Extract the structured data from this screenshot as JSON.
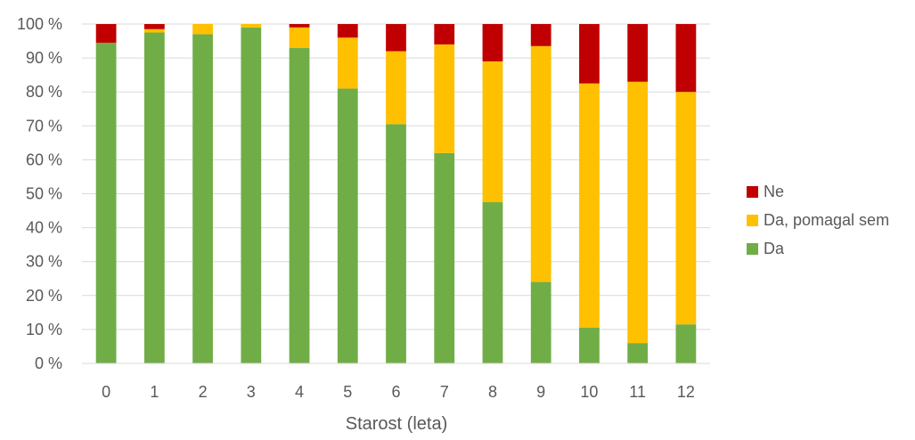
{
  "chart_data": {
    "type": "bar",
    "stacked": true,
    "percent_stacked": true,
    "title": "",
    "xlabel": "Starost (leta)",
    "ylabel": "",
    "categories": [
      "0",
      "1",
      "2",
      "3",
      "4",
      "5",
      "6",
      "7",
      "8",
      "9",
      "10",
      "11",
      "12"
    ],
    "ylim": [
      0,
      100
    ],
    "yticks": [
      "0 %",
      "10 %",
      "20 %",
      "30 %",
      "40 %",
      "50 %",
      "60 %",
      "70 %",
      "80 %",
      "90 %",
      "100 %"
    ],
    "grid": true,
    "legend_position": "right",
    "series": [
      {
        "name": "Da",
        "color": "#70ad47",
        "values": [
          94.5,
          97.5,
          97,
          99,
          93,
          81,
          70.5,
          62,
          47.5,
          24,
          10.5,
          6,
          11.5
        ]
      },
      {
        "name": "Da, pomagal sem",
        "color": "#ffc000",
        "values": [
          0,
          1,
          3,
          1,
          6,
          15,
          21.5,
          32,
          41.5,
          69.5,
          72,
          77,
          68.5
        ]
      },
      {
        "name": "Ne",
        "color": "#c00000",
        "values": [
          5.5,
          1.5,
          0,
          0,
          1,
          4,
          8,
          6,
          11,
          6.5,
          17.5,
          17,
          20
        ]
      }
    ],
    "legend_order": [
      "Ne",
      "Da, pomagal sem",
      "Da"
    ]
  }
}
